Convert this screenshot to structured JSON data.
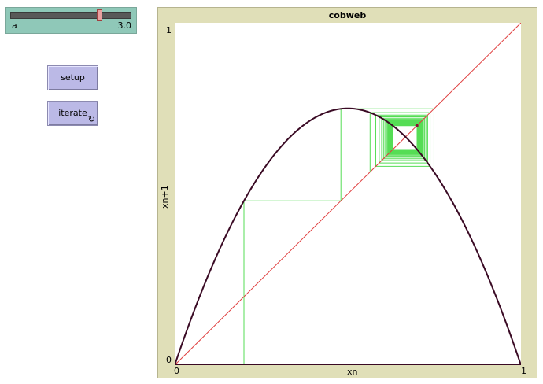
{
  "slider": {
    "label": "a",
    "value": "3.0",
    "min": 0,
    "max": 4,
    "current": 3.0
  },
  "buttons": {
    "setup_label": "setup",
    "iterate_label": "iterate",
    "forever_icon": "↻"
  },
  "plot": {
    "title": "cobweb",
    "xlabel": "xn",
    "ylabel": "xn+1",
    "xmin": "0",
    "xmax": "1",
    "ymin": "0",
    "ymax": "1"
  },
  "chart_data": {
    "type": "line",
    "title": "cobweb",
    "xlabel": "xn",
    "ylabel": "xn+1",
    "xlim": [
      0,
      1
    ],
    "ylim": [
      0,
      1
    ],
    "r": 3.0,
    "x0": 0.2,
    "iterations": 40,
    "series": [
      {
        "role": "map",
        "color": "#3a0a24"
      },
      {
        "role": "identity",
        "color": "#e04040"
      },
      {
        "role": "cobweb",
        "color": "#55dd55"
      }
    ]
  },
  "colors": {
    "map": "#3a0a24",
    "identity": "#e04040",
    "cobweb": "#55dd55",
    "slider_bg": "#8fc8b8",
    "button_bg": "#bbb9e6",
    "plot_bg": "#e0dfb8"
  }
}
